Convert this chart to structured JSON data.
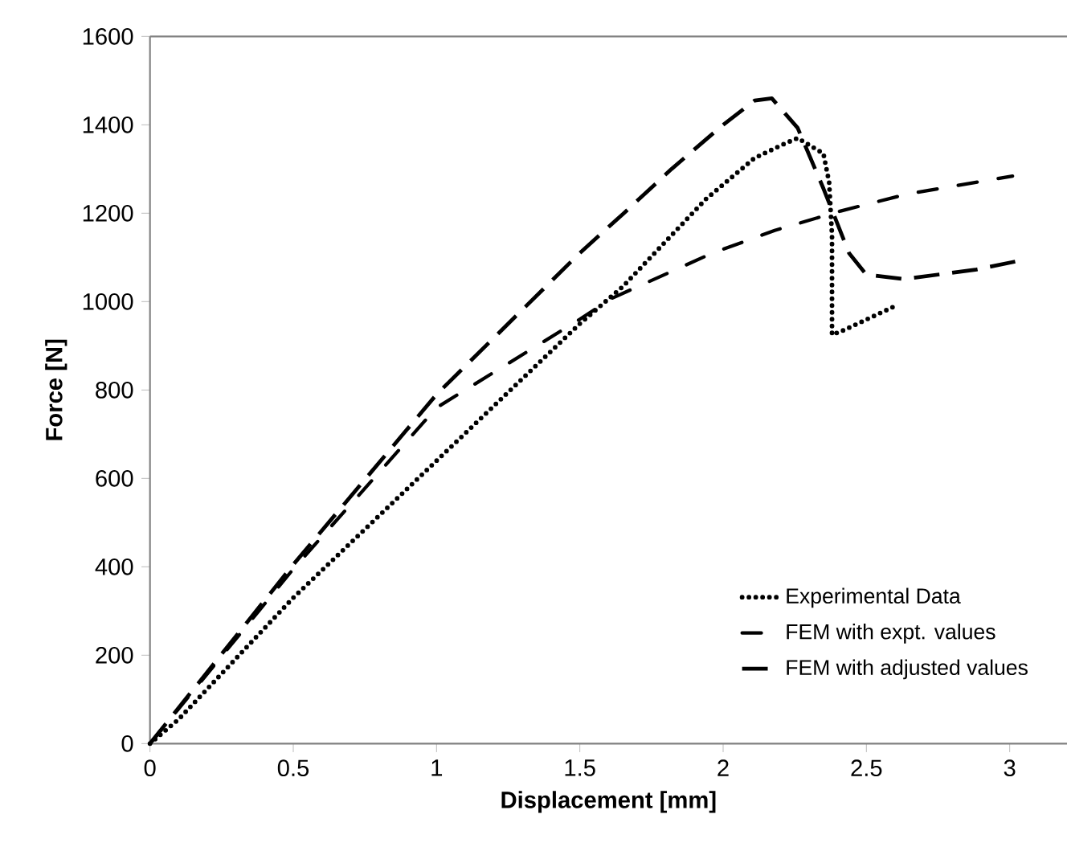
{
  "chart_data": {
    "type": "line",
    "xlabel": "Displacement [mm]",
    "ylabel": "Force [N]",
    "xlim": [
      0,
      3.2
    ],
    "ylim": [
      0,
      1600
    ],
    "xticks": [
      0,
      0.5,
      1,
      1.5,
      2,
      2.5,
      3
    ],
    "yticks": [
      0,
      200,
      400,
      600,
      800,
      1000,
      1200,
      1400,
      1600
    ],
    "grid": false,
    "legend": "bottom right",
    "marker": "none",
    "series": [
      {
        "name": "Experimental Data",
        "color": "#000000",
        "line_style": "dotted",
        "x": [
          0,
          0.1,
          0.5,
          1.0,
          1.5,
          1.65,
          1.94,
          2.11,
          2.21,
          2.26,
          2.35,
          2.37,
          2.38,
          2.38,
          2.42,
          2.6
        ],
        "values": [
          0,
          55,
          330,
          640,
          950,
          1034,
          1232,
          1325,
          1356,
          1370,
          1335,
          1270,
          1150,
          925,
          935,
          990
        ]
      },
      {
        "name": "FEM with expt. values",
        "color": "#000000",
        "line_style": "dashdot",
        "x": [
          0,
          0.5,
          1.0,
          1.5,
          1.61,
          1.96,
          2.18,
          2.41,
          2.64,
          3.01
        ],
        "values": [
          0,
          395,
          760,
          960,
          1007,
          1109,
          1161,
          1205,
          1243,
          1284
        ]
      },
      {
        "name": "FEM with adjusted values",
        "color": "#000000",
        "line_style": "dashed",
        "x": [
          0,
          0.5,
          1.0,
          1.5,
          1.65,
          1.82,
          2.0,
          2.11,
          2.17,
          2.26,
          2.35,
          2.44,
          2.5,
          2.63,
          2.88,
          3.03
        ],
        "values": [
          0,
          405,
          790,
          1110,
          1198,
          1300,
          1400,
          1455,
          1460,
          1393,
          1256,
          1109,
          1061,
          1051,
          1072,
          1092
        ]
      }
    ]
  }
}
